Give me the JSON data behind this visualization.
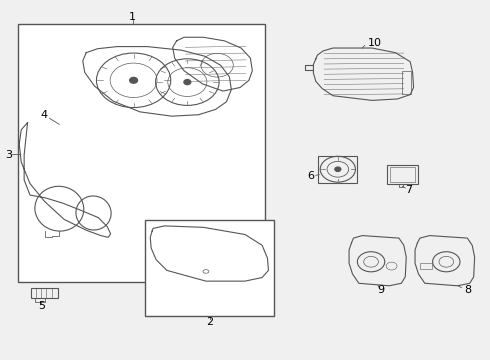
{
  "bg_color": "#f0f0f0",
  "line_color": "#555555",
  "labels": [
    "1",
    "2",
    "3",
    "4",
    "5",
    "6",
    "7",
    "8",
    "9",
    "10"
  ]
}
